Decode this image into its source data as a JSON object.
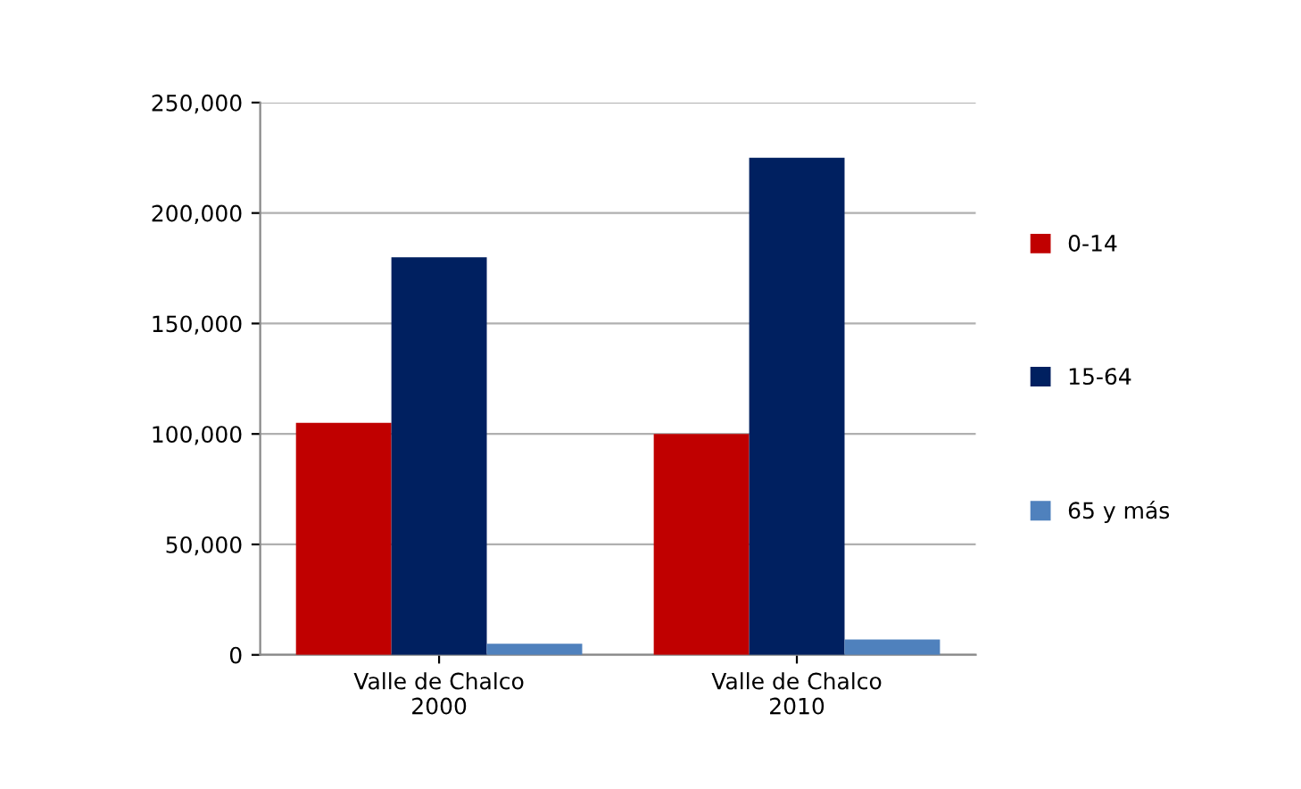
{
  "chart_data": {
    "type": "bar",
    "categories": [
      "Valle de Chalco\n2000",
      "Valle de Chalco\n2010"
    ],
    "series": [
      {
        "name": "0-14",
        "color": "#c00000",
        "values": [
          105000,
          100000
        ]
      },
      {
        "name": "15-64",
        "color": "#002060",
        "values": [
          180000,
          225000
        ]
      },
      {
        "name": "65 y más",
        "color": "#4f81bd",
        "values": [
          5000,
          7000
        ]
      }
    ],
    "ylim": [
      0,
      250000
    ],
    "yticks": [
      {
        "value": 0,
        "label": "0"
      },
      {
        "value": 50000,
        "label": "50,000"
      },
      {
        "value": 100000,
        "label": "100,000"
      },
      {
        "value": 150000,
        "label": "150,000"
      },
      {
        "value": 200000,
        "label": "200,000"
      },
      {
        "value": 250000,
        "label": "250,000"
      }
    ],
    "grid": "y",
    "legend": "right"
  }
}
